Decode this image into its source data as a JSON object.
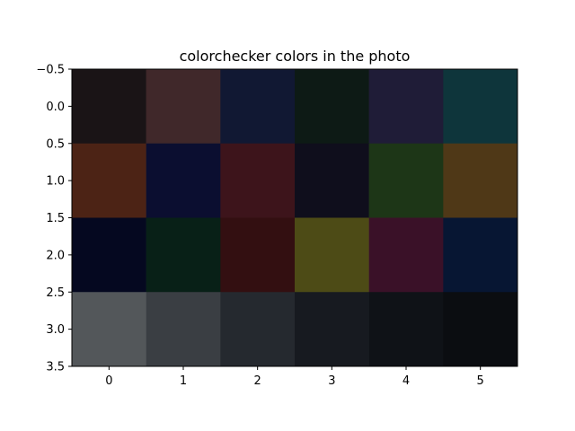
{
  "chart_data": {
    "type": "heatmap",
    "title": "colorchecker colors in the photo",
    "xlabel": "",
    "ylabel": "",
    "x_ticks": [
      "0",
      "1",
      "2",
      "3",
      "4",
      "5"
    ],
    "y_ticks": [
      "−0.5",
      "0.0",
      "0.5",
      "1.0",
      "1.5",
      "2.0",
      "2.5",
      "3.0",
      "3.5"
    ],
    "xlim": [
      -0.5,
      5.5
    ],
    "ylim": [
      3.5,
      -0.5
    ],
    "grid": false,
    "rows": 4,
    "cols": 6,
    "cell_colors": [
      [
        "#1a1416",
        "#40282a",
        "#111833",
        "#0d1a15",
        "#1f1c37",
        "#0e353b"
      ],
      [
        "#4c2315",
        "#0b0e30",
        "#3d141b",
        "#0f0e1c",
        "#1d3617",
        "#4f3817"
      ],
      [
        "#050820",
        "#082017",
        "#330f11",
        "#4d4b16",
        "#3a1128",
        "#071633"
      ],
      [
        "#53575a",
        "#3a3e43",
        "#25292f",
        "#171a20",
        "#0f1217",
        "#0b0d11"
      ]
    ]
  }
}
